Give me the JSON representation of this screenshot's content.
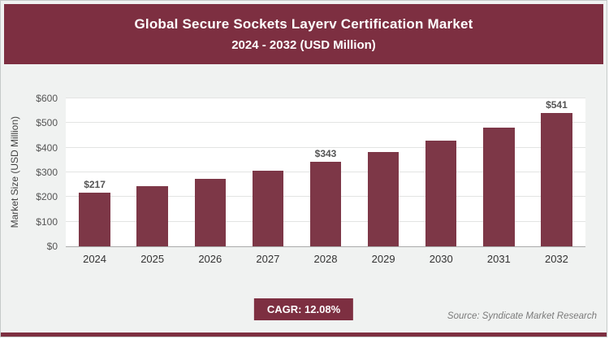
{
  "header": {
    "title": "Global Secure Sockets Layerv Certification Market",
    "subtitle": "2024 - 2032 (USD Million)"
  },
  "chart_data": {
    "type": "bar",
    "title": "Global Secure Sockets Layerv Certification Market 2024 - 2032 (USD Million)",
    "categories": [
      "2024",
      "2025",
      "2026",
      "2027",
      "2028",
      "2029",
      "2030",
      "2031",
      "2032"
    ],
    "values": [
      217,
      243,
      273,
      306,
      343,
      384,
      430,
      482,
      541
    ],
    "labels": [
      "$217",
      null,
      null,
      null,
      "$343",
      null,
      null,
      null,
      "$541"
    ],
    "xlabel": "",
    "ylabel": "Market Size (USD Million)",
    "ylim": [
      0,
      600
    ],
    "yticks": [
      "$0",
      "$100",
      "$200",
      "$300",
      "$400",
      "$500",
      "$600"
    ],
    "grid": true,
    "legend": "none",
    "bar_color": "#7d3747"
  },
  "footer": {
    "cagr_label": "CAGR: 12.08%",
    "source": "Source: Syndicate Market Research"
  },
  "colors": {
    "accent": "#7d2f41",
    "background": "#f0f2f1",
    "plot_background": "#ffffff",
    "gridline": "#e3e4e3"
  }
}
